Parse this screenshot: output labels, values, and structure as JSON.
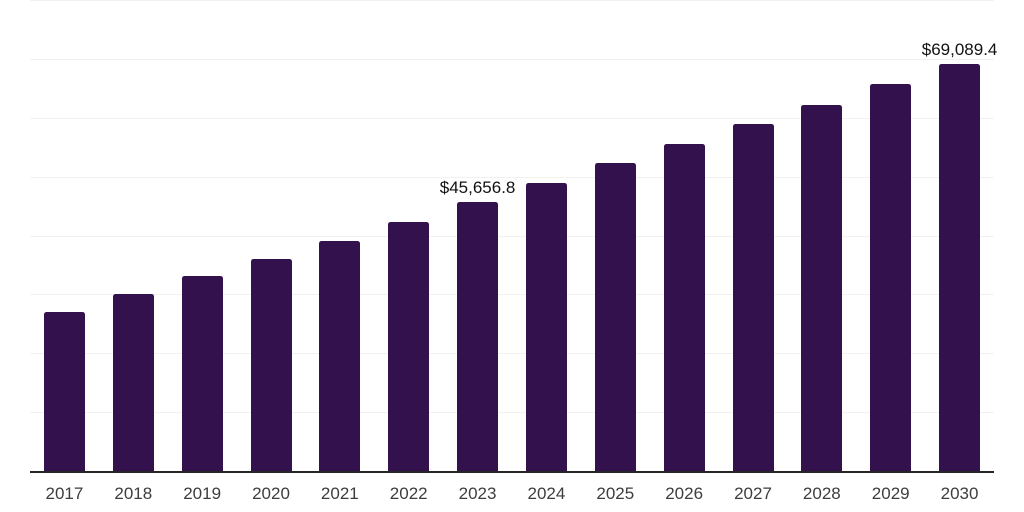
{
  "chart_data": {
    "type": "bar",
    "title": "",
    "xlabel": "",
    "ylabel": "",
    "categories": [
      "2017",
      "2018",
      "2019",
      "2020",
      "2021",
      "2022",
      "2023",
      "2024",
      "2025",
      "2026",
      "2027",
      "2028",
      "2029",
      "2030"
    ],
    "values": [
      27000,
      30100,
      33150,
      36050,
      39100,
      42300,
      45656.8,
      49000,
      52300,
      55550,
      58950,
      62150,
      65700,
      69089.4
    ],
    "data_labels": [
      {
        "category": "2023",
        "text": "$45,656.8"
      },
      {
        "category": "2030",
        "text": "$69,089.4"
      }
    ],
    "ylim": [
      0,
      80000
    ],
    "gridline_step": 10000,
    "grid": "horizontal-only",
    "y_axis_labels_shown": false,
    "legend": "none",
    "colors": {
      "bar": "#32114d",
      "axis_line": "#262626",
      "gridline": "#f1f1f1",
      "tick_label": "#3d3d3d",
      "data_label": "#111111",
      "background": "#ffffff"
    }
  }
}
